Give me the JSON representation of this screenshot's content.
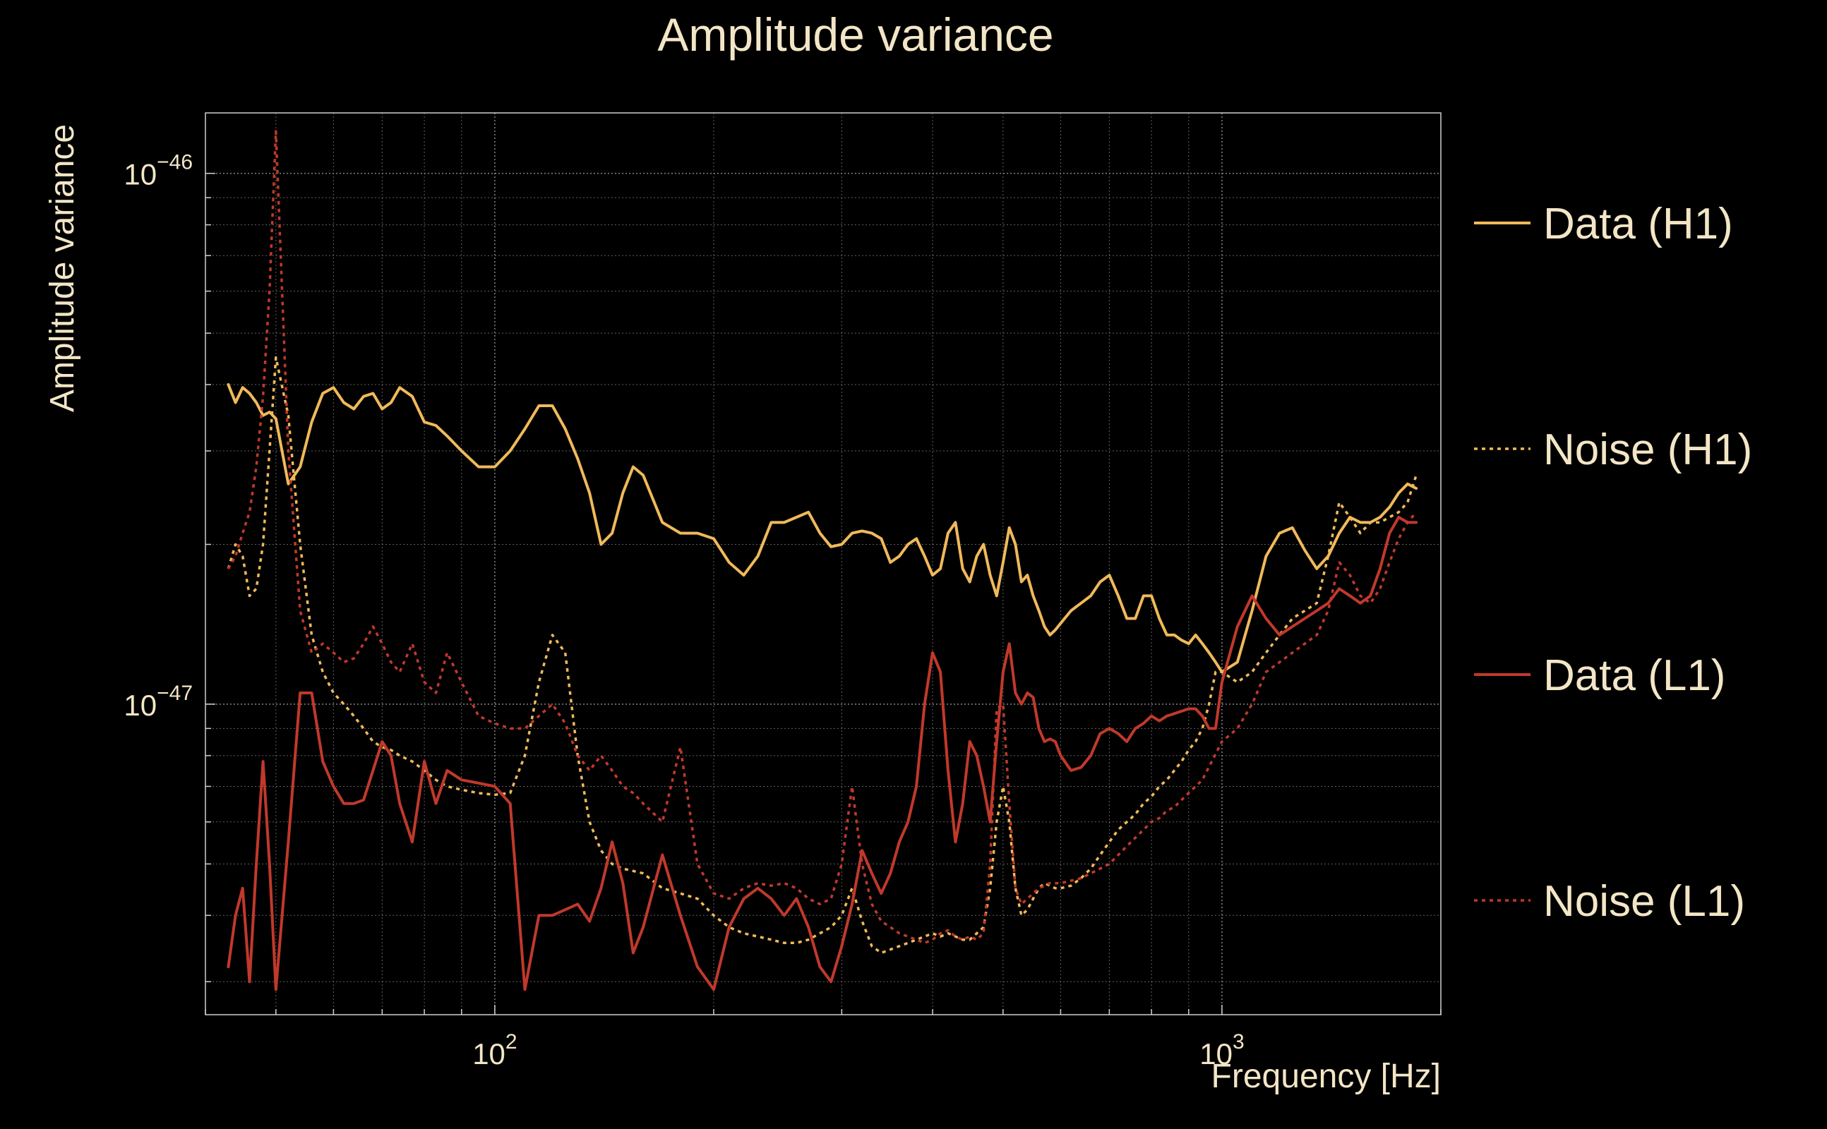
{
  "chart_data": {
    "type": "line",
    "title": "Amplitude variance",
    "xlabel": "Frequency [Hz]",
    "ylabel": "Amplitude variance",
    "x_scale": "log",
    "y_scale": "log",
    "xlim": [
      40,
      2000
    ],
    "ylim": [
      2.6e-48,
      1.3e-46
    ],
    "x_ticks": [
      {
        "value": 100,
        "label": "10",
        "exp": "2"
      },
      {
        "value": 1000,
        "label": "10",
        "exp": "3"
      }
    ],
    "y_ticks": [
      {
        "value": 1e-46,
        "label": "10",
        "exp": "−46"
      },
      {
        "value": 1e-47,
        "label": "10",
        "exp": "−47"
      }
    ],
    "grid": true,
    "legend_position": "right",
    "colors": {
      "background": "#000000",
      "text": "#f3e6c6",
      "h1": "#f0b95a",
      "l1": "#c0392b",
      "grid": "#8a8a8a"
    },
    "series": [
      {
        "name": "Data (H1)",
        "style": "solid",
        "color": "#f0b95a",
        "x": [
          43,
          44,
          45,
          46,
          47,
          48,
          49,
          50,
          52,
          54,
          56,
          58,
          60,
          62,
          64,
          66,
          68,
          70,
          72,
          74,
          77,
          80,
          83,
          86,
          90,
          95,
          100,
          105,
          110,
          115,
          120,
          125,
          130,
          135,
          140,
          145,
          150,
          155,
          160,
          170,
          180,
          190,
          200,
          210,
          220,
          230,
          240,
          250,
          260,
          270,
          280,
          290,
          300,
          310,
          320,
          330,
          340,
          350,
          360,
          370,
          380,
          390,
          400,
          410,
          420,
          430,
          440,
          450,
          460,
          470,
          480,
          490,
          500,
          510,
          520,
          530,
          540,
          550,
          560,
          570,
          580,
          590,
          600,
          620,
          640,
          660,
          680,
          700,
          720,
          740,
          760,
          780,
          800,
          820,
          840,
          860,
          880,
          900,
          920,
          940,
          960,
          980,
          1000,
          1050,
          1100,
          1150,
          1200,
          1250,
          1300,
          1350,
          1400,
          1450,
          1500,
          1550,
          1600,
          1650,
          1700,
          1750,
          1800,
          1850
        ],
        "y": [
          4e-47,
          3.7e-47,
          3.95e-47,
          3.85e-47,
          3.7e-47,
          3.5e-47,
          3.55e-47,
          3.45e-47,
          2.6e-47,
          2.8e-47,
          3.4e-47,
          3.85e-47,
          3.95e-47,
          3.7e-47,
          3.6e-47,
          3.8e-47,
          3.85e-47,
          3.6e-47,
          3.7e-47,
          3.95e-47,
          3.8e-47,
          3.4e-47,
          3.35e-47,
          3.2e-47,
          3e-47,
          2.8e-47,
          2.8e-47,
          3e-47,
          3.3e-47,
          3.65e-47,
          3.65e-47,
          3.3e-47,
          2.9e-47,
          2.5e-47,
          2e-47,
          2.1e-47,
          2.5e-47,
          2.8e-47,
          2.7e-47,
          2.2e-47,
          2.1e-47,
          2.1e-47,
          2.05e-47,
          1.85e-47,
          1.75e-47,
          1.9e-47,
          2.2e-47,
          2.2e-47,
          2.25e-47,
          2.3e-47,
          2.1e-47,
          1.98e-47,
          2e-47,
          2.1e-47,
          2.12e-47,
          2.1e-47,
          2.05e-47,
          1.85e-47,
          1.9e-47,
          2e-47,
          2.05e-47,
          1.9e-47,
          1.75e-47,
          1.8e-47,
          2.1e-47,
          2.2e-47,
          1.8e-47,
          1.7e-47,
          1.9e-47,
          2e-47,
          1.75e-47,
          1.6e-47,
          1.85e-47,
          2.15e-47,
          2e-47,
          1.7e-47,
          1.75e-47,
          1.6e-47,
          1.5e-47,
          1.4e-47,
          1.35e-47,
          1.38e-47,
          1.42e-47,
          1.5e-47,
          1.55e-47,
          1.6e-47,
          1.7e-47,
          1.75e-47,
          1.6e-47,
          1.45e-47,
          1.45e-47,
          1.6e-47,
          1.6e-47,
          1.45e-47,
          1.35e-47,
          1.35e-47,
          1.32e-47,
          1.3e-47,
          1.35e-47,
          1.3e-47,
          1.25e-47,
          1.2e-47,
          1.15e-47,
          1.2e-47,
          1.5e-47,
          1.9e-47,
          2.1e-47,
          2.15e-47,
          1.95e-47,
          1.8e-47,
          1.9e-47,
          2.1e-47,
          2.25e-47,
          2.2e-47,
          2.2e-47,
          2.25e-47,
          2.35e-47,
          2.5e-47,
          2.6e-47,
          2.55e-47
        ]
      },
      {
        "name": "Noise (H1)",
        "style": "dotted",
        "color": "#f0b95a",
        "x": [
          43,
          44,
          45,
          46,
          47,
          48,
          49,
          50,
          52,
          54,
          56,
          58,
          60,
          62,
          64,
          66,
          68,
          70,
          72,
          74,
          77,
          80,
          83,
          86,
          90,
          95,
          100,
          105,
          110,
          115,
          120,
          125,
          130,
          135,
          140,
          145,
          150,
          155,
          160,
          170,
          180,
          190,
          200,
          210,
          220,
          230,
          240,
          250,
          260,
          270,
          280,
          290,
          300,
          310,
          320,
          330,
          340,
          350,
          360,
          370,
          380,
          390,
          400,
          410,
          420,
          430,
          440,
          450,
          460,
          470,
          480,
          490,
          500,
          510,
          520,
          530,
          540,
          550,
          560,
          570,
          580,
          590,
          600,
          620,
          640,
          660,
          680,
          700,
          720,
          740,
          760,
          780,
          800,
          820,
          840,
          860,
          880,
          900,
          920,
          940,
          960,
          980,
          1000,
          1050,
          1100,
          1150,
          1200,
          1250,
          1300,
          1350,
          1400,
          1450,
          1500,
          1550,
          1600,
          1650,
          1700,
          1750,
          1800,
          1850
        ],
        "y": [
          1.8e-47,
          2e-47,
          1.9e-47,
          1.6e-47,
          1.65e-47,
          2e-47,
          3e-47,
          4.5e-47,
          3.5e-47,
          2e-47,
          1.35e-47,
          1.15e-47,
          1.05e-47,
          1e-47,
          9.5e-48,
          9e-48,
          8.5e-48,
          8.3e-48,
          8.2e-48,
          8e-48,
          7.8e-48,
          7.5e-48,
          7.2e-48,
          7e-48,
          6.9e-48,
          6.8e-48,
          6.75e-48,
          6.8e-48,
          8e-48,
          1.1e-47,
          1.35e-47,
          1.25e-47,
          8e-48,
          6e-48,
          5.3e-48,
          5e-48,
          4.9e-48,
          4.85e-48,
          4.8e-48,
          4.5e-48,
          4.4e-48,
          4.3e-48,
          4e-48,
          3.8e-48,
          3.7e-48,
          3.65e-48,
          3.6e-48,
          3.55e-48,
          3.55e-48,
          3.6e-48,
          3.7e-48,
          3.8e-48,
          4e-48,
          4.5e-48,
          3.9e-48,
          3.5e-48,
          3.4e-48,
          3.45e-48,
          3.5e-48,
          3.55e-48,
          3.6e-48,
          3.65e-48,
          3.7e-48,
          3.65e-48,
          3.7e-48,
          3.65e-48,
          3.6e-48,
          3.6e-48,
          3.7e-48,
          3.8e-48,
          4.5e-48,
          6e-48,
          7e-48,
          6e-48,
          4.5e-48,
          4e-48,
          4.1e-48,
          4.3e-48,
          4.5e-48,
          4.6e-48,
          4.55e-48,
          4.5e-48,
          4.5e-48,
          4.55e-48,
          4.7e-48,
          4.9e-48,
          5.2e-48,
          5.5e-48,
          5.8e-48,
          6e-48,
          6.2e-48,
          6.5e-48,
          6.7e-48,
          7e-48,
          7.2e-48,
          7.5e-48,
          7.8e-48,
          8.2e-48,
          8.5e-48,
          9e-48,
          1e-47,
          1.15e-47,
          1.15e-47,
          1.1e-47,
          1.15e-47,
          1.25e-47,
          1.35e-47,
          1.45e-47,
          1.5e-47,
          1.55e-47,
          1.9e-47,
          2.4e-47,
          2.25e-47,
          2.1e-47,
          2.2e-47,
          2.2e-47,
          2.25e-47,
          2.3e-47,
          2.4e-47,
          2.7e-47
        ]
      },
      {
        "name": "Data (L1)",
        "style": "solid",
        "color": "#c0392b",
        "x": [
          43,
          44,
          45,
          46,
          47,
          48,
          49,
          50,
          52,
          54,
          56,
          58,
          60,
          62,
          64,
          66,
          68,
          70,
          72,
          74,
          77,
          80,
          83,
          86,
          90,
          95,
          100,
          105,
          110,
          115,
          120,
          125,
          130,
          135,
          140,
          145,
          150,
          155,
          160,
          170,
          180,
          190,
          200,
          210,
          220,
          230,
          240,
          250,
          260,
          270,
          280,
          290,
          300,
          310,
          320,
          330,
          340,
          350,
          360,
          370,
          380,
          390,
          400,
          410,
          420,
          430,
          440,
          450,
          460,
          470,
          480,
          490,
          500,
          510,
          520,
          530,
          540,
          550,
          560,
          570,
          580,
          590,
          600,
          620,
          640,
          660,
          680,
          700,
          720,
          740,
          760,
          780,
          800,
          820,
          840,
          860,
          880,
          900,
          920,
          940,
          960,
          980,
          1000,
          1050,
          1100,
          1150,
          1200,
          1250,
          1300,
          1350,
          1400,
          1450,
          1500,
          1550,
          1600,
          1650,
          1700,
          1750,
          1800,
          1850
        ],
        "y": [
          3.2e-48,
          4e-48,
          4.5e-48,
          3e-48,
          5e-48,
          7.8e-48,
          5e-48,
          2.9e-48,
          5.5e-48,
          1.05e-47,
          1.05e-47,
          7.8e-48,
          7e-48,
          6.5e-48,
          6.5e-48,
          6.6e-48,
          7.5e-48,
          8.5e-48,
          8e-48,
          6.5e-48,
          5.5e-48,
          7.8e-48,
          6.5e-48,
          7.5e-48,
          7.2e-48,
          7.1e-48,
          7e-48,
          6.5e-48,
          2.9e-48,
          4e-48,
          4e-48,
          4.1e-48,
          4.2e-48,
          3.9e-48,
          4.5e-48,
          5.5e-48,
          4.6e-48,
          3.4e-48,
          3.8e-48,
          5.2e-48,
          4e-48,
          3.2e-48,
          2.9e-48,
          3.8e-48,
          4.3e-48,
          4.5e-48,
          4.3e-48,
          4e-48,
          4.3e-48,
          3.8e-48,
          3.2e-48,
          3e-48,
          3.5e-48,
          4.2e-48,
          5.3e-48,
          4.8e-48,
          4.4e-48,
          4.8e-48,
          5.5e-48,
          6e-48,
          7e-48,
          1e-47,
          1.25e-47,
          1.15e-47,
          7.5e-48,
          5.5e-48,
          6.5e-48,
          8.5e-48,
          8e-48,
          7e-48,
          6e-48,
          8.5e-48,
          1.15e-47,
          1.3e-47,
          1.05e-47,
          1e-47,
          1.05e-47,
          1.03e-47,
          9e-48,
          8.5e-48,
          8.6e-48,
          8.5e-48,
          8e-48,
          7.5e-48,
          7.6e-48,
          8e-48,
          8.8e-48,
          9e-48,
          8.8e-48,
          8.5e-48,
          9e-48,
          9.2e-48,
          9.5e-48,
          9.3e-48,
          9.5e-48,
          9.6e-48,
          9.7e-48,
          9.8e-48,
          9.8e-48,
          9.5e-48,
          9e-48,
          9e-48,
          1.1e-47,
          1.4e-47,
          1.6e-47,
          1.45e-47,
          1.35e-47,
          1.4e-47,
          1.45e-47,
          1.5e-47,
          1.55e-47,
          1.65e-47,
          1.6e-47,
          1.55e-47,
          1.6e-47,
          1.8e-47,
          2.1e-47,
          2.25e-47,
          2.2e-47,
          2.2e-47
        ]
      },
      {
        "name": "Noise (L1)",
        "style": "dotted",
        "color": "#c0392b",
        "x": [
          43,
          44,
          45,
          46,
          47,
          48,
          49,
          50,
          52,
          54,
          56,
          58,
          60,
          62,
          64,
          66,
          68,
          70,
          72,
          74,
          77,
          80,
          83,
          86,
          90,
          95,
          100,
          105,
          110,
          115,
          120,
          125,
          130,
          135,
          140,
          145,
          150,
          155,
          160,
          170,
          180,
          190,
          200,
          210,
          220,
          230,
          240,
          250,
          260,
          270,
          280,
          290,
          300,
          310,
          320,
          330,
          340,
          350,
          360,
          370,
          380,
          390,
          400,
          410,
          420,
          430,
          440,
          450,
          460,
          470,
          480,
          490,
          500,
          510,
          520,
          530,
          540,
          550,
          560,
          570,
          580,
          590,
          600,
          620,
          640,
          660,
          680,
          700,
          720,
          740,
          760,
          780,
          800,
          820,
          840,
          860,
          880,
          900,
          920,
          940,
          1000,
          1050,
          1100,
          1150,
          1200,
          1250,
          1300,
          1350,
          1400,
          1450,
          1500,
          1550,
          1600,
          1650,
          1700,
          1750,
          1800,
          1850
        ],
        "y": [
          1.8e-47,
          1.9e-47,
          2.1e-47,
          2.3e-47,
          2.8e-47,
          3.8e-47,
          6e-47,
          1.2e-46,
          3e-47,
          1.5e-47,
          1.25e-47,
          1.3e-47,
          1.25e-47,
          1.2e-47,
          1.22e-47,
          1.3e-47,
          1.4e-47,
          1.3e-47,
          1.2e-47,
          1.15e-47,
          1.3e-47,
          1.1e-47,
          1.05e-47,
          1.25e-47,
          1.1e-47,
          9.5e-48,
          9.2e-48,
          9e-48,
          9e-48,
          9.5e-48,
          1e-47,
          9.2e-48,
          8e-48,
          7.5e-48,
          8e-48,
          7.5e-48,
          7e-48,
          6.8e-48,
          6.5e-48,
          6e-48,
          8.3e-48,
          5e-48,
          4.4e-48,
          4.3e-48,
          4.5e-48,
          4.6e-48,
          4.55e-48,
          4.6e-48,
          4.5e-48,
          4.3e-48,
          4.2e-48,
          4.3e-48,
          5e-48,
          7e-48,
          5e-48,
          4.2e-48,
          3.9e-48,
          3.8e-48,
          3.7e-48,
          3.65e-48,
          3.6e-48,
          3.55e-48,
          3.6e-48,
          3.7e-48,
          3.75e-48,
          3.65e-48,
          3.6e-48,
          3.65e-48,
          3.6e-48,
          3.7e-48,
          5e-48,
          9.8e-48,
          1e-47,
          6.5e-48,
          4.5e-48,
          4.2e-48,
          4.3e-48,
          4.4e-48,
          4.5e-48,
          4.55e-48,
          4.6e-48,
          4.6e-48,
          4.6e-48,
          4.65e-48,
          4.7e-48,
          4.8e-48,
          4.9e-48,
          5e-48,
          5.2e-48,
          5.4e-48,
          5.6e-48,
          5.8e-48,
          6e-48,
          6.1e-48,
          6.3e-48,
          6.4e-48,
          6.6e-48,
          6.8e-48,
          7e-48,
          7.2e-48,
          8.5e-48,
          9e-48,
          1e-47,
          1.15e-47,
          1.2e-47,
          1.25e-47,
          1.3e-47,
          1.35e-47,
          1.5e-47,
          1.85e-47,
          1.75e-47,
          1.6e-47,
          1.55e-47,
          1.65e-47,
          1.85e-47,
          2.05e-47,
          2.2e-47,
          2.3e-47
        ]
      }
    ]
  }
}
